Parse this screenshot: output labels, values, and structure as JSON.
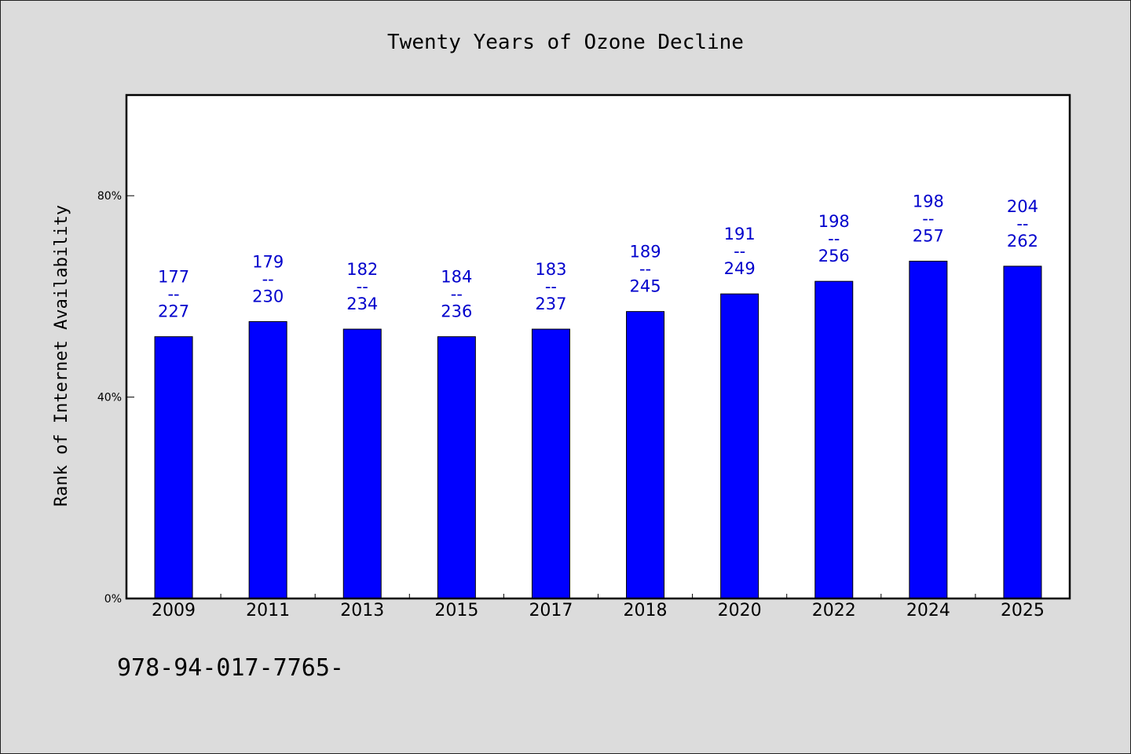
{
  "chart_data": {
    "type": "bar",
    "title": "Twenty Years of Ozone Decline",
    "xlabel": "",
    "ylabel": "Rank of Internet Availability",
    "categories": [
      "2009",
      "2011",
      "2013",
      "2015",
      "2017",
      "2018",
      "2020",
      "2022",
      "2024",
      "2025"
    ],
    "series": [
      {
        "values": [
          52,
          55,
          53.5,
          52,
          53.5,
          57,
          60.5,
          63,
          67,
          66
        ],
        "color": "#0000ff"
      }
    ],
    "data_labels": [
      {
        "top": "177",
        "mid": "--",
        "bottom": "227"
      },
      {
        "top": "179",
        "mid": "--",
        "bottom": "230"
      },
      {
        "top": "182",
        "mid": "--",
        "bottom": "234"
      },
      {
        "top": "184",
        "mid": "--",
        "bottom": "236"
      },
      {
        "top": "183",
        "mid": "--",
        "bottom": "237"
      },
      {
        "top": "189",
        "mid": "--",
        "bottom": "245"
      },
      {
        "top": "191",
        "mid": "--",
        "bottom": "249"
      },
      {
        "top": "198",
        "mid": "--",
        "bottom": "256"
      },
      {
        "top": "198",
        "mid": "--",
        "bottom": "257"
      },
      {
        "top": "204",
        "mid": "--",
        "bottom": "262"
      }
    ],
    "ylim": [
      0,
      100
    ],
    "yticks": [
      0,
      40,
      80
    ],
    "ytick_labels": [
      "0%",
      "40%",
      "80%"
    ],
    "grid": false,
    "label_color": "#0000cc"
  },
  "footer": {
    "code": "978-94-017-7765-"
  }
}
